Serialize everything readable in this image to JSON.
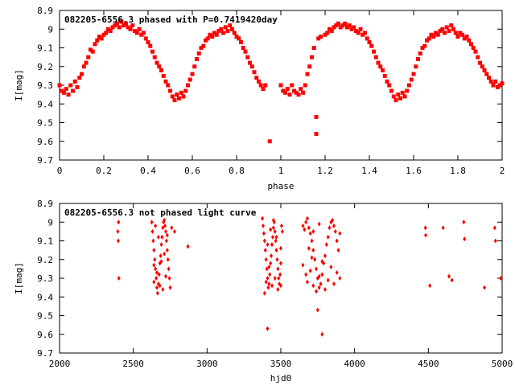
{
  "chart_data": [
    {
      "type": "scatter",
      "title": "082205-6556.3 phased with P=0.7419420day",
      "xlabel": "phase",
      "ylabel": "I[mag]",
      "xlim": [
        0,
        2
      ],
      "ylim": [
        8.9,
        9.7
      ],
      "y_inverted": true,
      "grid": false,
      "marker_color": "#ff0000",
      "x_ticks": [
        "0",
        "0.2",
        "0.4",
        "0.6",
        "0.8",
        "1",
        "1.2",
        "1.4",
        "1.6",
        "1.8",
        "2"
      ],
      "y_ticks": [
        "8.9",
        "9",
        "9.1",
        "9.2",
        "9.3",
        "9.4",
        "9.5",
        "9.6",
        "9.7"
      ],
      "points": [
        [
          0.0,
          9.3
        ],
        [
          0.01,
          9.33
        ],
        [
          0.02,
          9.34
        ],
        [
          0.03,
          9.32
        ],
        [
          0.04,
          9.35
        ],
        [
          0.05,
          9.3
        ],
        [
          0.06,
          9.33
        ],
        [
          0.07,
          9.28
        ],
        [
          0.08,
          9.31
        ],
        [
          0.09,
          9.26
        ],
        [
          0.1,
          9.24
        ],
        [
          0.11,
          9.2
        ],
        [
          0.12,
          9.18
        ],
        [
          0.13,
          9.15
        ],
        [
          0.14,
          9.11
        ],
        [
          0.15,
          9.12
        ],
        [
          0.16,
          9.08
        ],
        [
          0.17,
          9.06
        ],
        [
          0.18,
          9.04
        ],
        [
          0.19,
          9.05
        ],
        [
          0.2,
          9.03
        ],
        [
          0.21,
          9.02
        ],
        [
          0.22,
          9.0
        ],
        [
          0.23,
          9.01
        ],
        [
          0.24,
          8.99
        ],
        [
          0.25,
          8.98
        ],
        [
          0.26,
          8.97
        ],
        [
          0.27,
          8.99
        ],
        [
          0.28,
          8.96
        ],
        [
          0.29,
          8.98
        ],
        [
          0.3,
          8.97
        ],
        [
          0.31,
          8.99
        ],
        [
          0.32,
          9.0
        ],
        [
          0.33,
          8.98
        ],
        [
          0.34,
          9.01
        ],
        [
          0.35,
          9.02
        ],
        [
          0.36,
          9.0
        ],
        [
          0.37,
          9.03
        ],
        [
          0.38,
          9.02
        ],
        [
          0.39,
          9.05
        ],
        [
          0.4,
          9.07
        ],
        [
          0.41,
          9.09
        ],
        [
          0.42,
          9.12
        ],
        [
          0.43,
          9.15
        ],
        [
          0.44,
          9.18
        ],
        [
          0.45,
          9.2
        ],
        [
          0.46,
          9.22
        ],
        [
          0.47,
          9.25
        ],
        [
          0.48,
          9.28
        ],
        [
          0.49,
          9.3
        ],
        [
          0.5,
          9.33
        ],
        [
          0.51,
          9.36
        ],
        [
          0.52,
          9.38
        ],
        [
          0.53,
          9.35
        ],
        [
          0.54,
          9.37
        ],
        [
          0.55,
          9.34
        ],
        [
          0.56,
          9.36
        ],
        [
          0.57,
          9.33
        ],
        [
          0.58,
          9.3
        ],
        [
          0.59,
          9.27
        ],
        [
          0.6,
          9.24
        ],
        [
          0.61,
          9.2
        ],
        [
          0.62,
          9.16
        ],
        [
          0.63,
          9.13
        ],
        [
          0.64,
          9.1
        ],
        [
          0.65,
          9.09
        ],
        [
          0.66,
          9.06
        ],
        [
          0.67,
          9.05
        ],
        [
          0.68,
          9.03
        ],
        [
          0.69,
          9.04
        ],
        [
          0.7,
          9.02
        ],
        [
          0.71,
          9.03
        ],
        [
          0.72,
          9.01
        ],
        [
          0.73,
          9.0
        ],
        [
          0.74,
          9.02
        ],
        [
          0.75,
          8.99
        ],
        [
          0.76,
          9.01
        ],
        [
          0.77,
          8.98
        ],
        [
          0.78,
          9.0
        ],
        [
          0.79,
          9.02
        ],
        [
          0.8,
          9.04
        ],
        [
          0.81,
          9.05
        ],
        [
          0.82,
          9.07
        ],
        [
          0.83,
          9.1
        ],
        [
          0.84,
          9.12
        ],
        [
          0.85,
          9.15
        ],
        [
          0.86,
          9.18
        ],
        [
          0.87,
          9.2
        ],
        [
          0.88,
          9.23
        ],
        [
          0.89,
          9.26
        ],
        [
          0.9,
          9.28
        ],
        [
          0.91,
          9.3
        ],
        [
          0.92,
          9.32
        ],
        [
          0.93,
          9.3
        ],
        [
          0.95,
          9.6
        ],
        [
          1.0,
          9.3
        ],
        [
          1.01,
          9.33
        ],
        [
          1.02,
          9.34
        ],
        [
          1.03,
          9.32
        ],
        [
          1.04,
          9.35
        ],
        [
          1.05,
          9.3
        ],
        [
          1.06,
          9.33
        ],
        [
          1.07,
          9.34
        ],
        [
          1.08,
          9.35
        ],
        [
          1.09,
          9.32
        ],
        [
          1.1,
          9.34
        ],
        [
          1.11,
          9.3
        ],
        [
          1.12,
          9.24
        ],
        [
          1.13,
          9.2
        ],
        [
          1.14,
          9.15
        ],
        [
          1.15,
          9.1
        ],
        [
          1.16,
          9.47
        ],
        [
          1.16,
          9.56
        ],
        [
          1.17,
          9.05
        ],
        [
          1.18,
          9.04
        ],
        [
          1.2,
          9.03
        ],
        [
          1.21,
          9.02
        ],
        [
          1.22,
          9.0
        ],
        [
          1.23,
          9.01
        ],
        [
          1.24,
          8.99
        ],
        [
          1.25,
          8.98
        ],
        [
          1.26,
          8.97
        ],
        [
          1.27,
          8.99
        ],
        [
          1.28,
          8.98
        ],
        [
          1.29,
          8.97
        ],
        [
          1.3,
          8.99
        ],
        [
          1.31,
          8.98
        ],
        [
          1.32,
          9.0
        ],
        [
          1.33,
          8.99
        ],
        [
          1.34,
          9.01
        ],
        [
          1.35,
          9.02
        ],
        [
          1.36,
          9.0
        ],
        [
          1.37,
          9.03
        ],
        [
          1.38,
          9.02
        ],
        [
          1.39,
          9.05
        ],
        [
          1.4,
          9.07
        ],
        [
          1.41,
          9.09
        ],
        [
          1.42,
          9.12
        ],
        [
          1.43,
          9.15
        ],
        [
          1.44,
          9.18
        ],
        [
          1.45,
          9.2
        ],
        [
          1.46,
          9.22
        ],
        [
          1.47,
          9.25
        ],
        [
          1.48,
          9.28
        ],
        [
          1.49,
          9.3
        ],
        [
          1.5,
          9.33
        ],
        [
          1.51,
          9.36
        ],
        [
          1.52,
          9.38
        ],
        [
          1.53,
          9.35
        ],
        [
          1.54,
          9.37
        ],
        [
          1.55,
          9.34
        ],
        [
          1.56,
          9.36
        ],
        [
          1.57,
          9.33
        ],
        [
          1.58,
          9.3
        ],
        [
          1.59,
          9.27
        ],
        [
          1.6,
          9.24
        ],
        [
          1.61,
          9.2
        ],
        [
          1.62,
          9.16
        ],
        [
          1.63,
          9.13
        ],
        [
          1.64,
          9.1
        ],
        [
          1.65,
          9.09
        ],
        [
          1.66,
          9.06
        ],
        [
          1.67,
          9.05
        ],
        [
          1.68,
          9.03
        ],
        [
          1.69,
          9.04
        ],
        [
          1.7,
          9.02
        ],
        [
          1.71,
          9.03
        ],
        [
          1.72,
          9.01
        ],
        [
          1.73,
          9.0
        ],
        [
          1.74,
          9.02
        ],
        [
          1.75,
          8.99
        ],
        [
          1.76,
          9.01
        ],
        [
          1.77,
          8.98
        ],
        [
          1.78,
          9.0
        ],
        [
          1.79,
          9.02
        ],
        [
          1.8,
          9.04
        ],
        [
          1.81,
          9.02
        ],
        [
          1.82,
          9.03
        ],
        [
          1.83,
          9.05
        ],
        [
          1.84,
          9.04
        ],
        [
          1.85,
          9.06
        ],
        [
          1.86,
          9.08
        ],
        [
          1.87,
          9.1
        ],
        [
          1.88,
          9.12
        ],
        [
          1.89,
          9.15
        ],
        [
          1.9,
          9.18
        ],
        [
          1.91,
          9.2
        ],
        [
          1.92,
          9.22
        ],
        [
          1.93,
          9.24
        ],
        [
          1.94,
          9.26
        ],
        [
          1.95,
          9.28
        ],
        [
          1.96,
          9.3
        ],
        [
          1.97,
          9.28
        ],
        [
          1.98,
          9.31
        ],
        [
          1.99,
          9.3
        ],
        [
          2.0,
          9.29
        ]
      ]
    },
    {
      "type": "scatter",
      "title": "082205-6556.3 not phased light curve",
      "xlabel": "hjd0",
      "ylabel": "I[mag]",
      "xlim": [
        2000,
        5000
      ],
      "ylim": [
        8.9,
        9.7
      ],
      "y_inverted": true,
      "grid": false,
      "marker_color": "#ff0000",
      "x_ticks": [
        "2000",
        "2500",
        "3000",
        "3500",
        "4000",
        "4500",
        "5000"
      ],
      "y_ticks": [
        "8.9",
        "9",
        "9.1",
        "9.2",
        "9.3",
        "9.4",
        "9.5",
        "9.6",
        "9.7"
      ],
      "points": [
        [
          2400,
          9.0
        ],
        [
          2395,
          9.05
        ],
        [
          2398,
          9.1
        ],
        [
          2402,
          9.3
        ],
        [
          2625,
          9.0
        ],
        [
          2630,
          9.05
        ],
        [
          2635,
          9.1
        ],
        [
          2640,
          9.15
        ],
        [
          2645,
          9.2
        ],
        [
          2650,
          9.25
        ],
        [
          2655,
          9.3
        ],
        [
          2660,
          9.35
        ],
        [
          2665,
          9.38
        ],
        [
          2670,
          9.33
        ],
        [
          2675,
          9.28
        ],
        [
          2680,
          9.22
        ],
        [
          2685,
          9.18
        ],
        [
          2690,
          9.12
        ],
        [
          2695,
          9.08
        ],
        [
          2700,
          9.03
        ],
        [
          2705,
          9.0
        ],
        [
          2710,
          8.99
        ],
        [
          2715,
          9.02
        ],
        [
          2720,
          9.05
        ],
        [
          2725,
          9.1
        ],
        [
          2730,
          9.15
        ],
        [
          2735,
          9.2
        ],
        [
          2740,
          9.25
        ],
        [
          2745,
          9.3
        ],
        [
          2750,
          9.35
        ],
        [
          2640,
          9.32
        ],
        [
          2660,
          9.27
        ],
        [
          2680,
          9.34
        ],
        [
          2700,
          9.36
        ],
        [
          2720,
          9.29
        ],
        [
          2690,
          9.21
        ],
        [
          2710,
          9.17
        ],
        [
          2730,
          9.07
        ],
        [
          2650,
          9.02
        ],
        [
          2670,
          9.08
        ],
        [
          2640,
          9.23
        ],
        [
          2760,
          9.03
        ],
        [
          2780,
          9.05
        ],
        [
          2870,
          9.13
        ],
        [
          3375,
          8.98
        ],
        [
          3380,
          9.02
        ],
        [
          3385,
          9.06
        ],
        [
          3390,
          9.1
        ],
        [
          3395,
          9.15
        ],
        [
          3400,
          9.2
        ],
        [
          3405,
          9.25
        ],
        [
          3410,
          9.3
        ],
        [
          3415,
          9.35
        ],
        [
          3420,
          9.33
        ],
        [
          3425,
          9.28
        ],
        [
          3430,
          9.22
        ],
        [
          3435,
          9.18
        ],
        [
          3440,
          9.12
        ],
        [
          3445,
          9.08
        ],
        [
          3450,
          9.03
        ],
        [
          3455,
          9.0
        ],
        [
          3460,
          9.05
        ],
        [
          3465,
          9.1
        ],
        [
          3470,
          9.15
        ],
        [
          3475,
          9.2
        ],
        [
          3480,
          9.25
        ],
        [
          3485,
          9.3
        ],
        [
          3490,
          9.33
        ],
        [
          3495,
          9.28
        ],
        [
          3500,
          9.22
        ],
        [
          3505,
          9.02
        ],
        [
          3510,
          9.05
        ],
        [
          3400,
          9.32
        ],
        [
          3420,
          9.24
        ],
        [
          3440,
          9.34
        ],
        [
          3460,
          9.3
        ],
        [
          3480,
          9.36
        ],
        [
          3500,
          9.14
        ],
        [
          3390,
          9.38
        ],
        [
          3410,
          9.12
        ],
        [
          3430,
          9.04
        ],
        [
          3450,
          8.99
        ],
        [
          3470,
          9.08
        ],
        [
          3500,
          9.34
        ],
        [
          3410,
          9.57
        ],
        [
          3650,
          9.02
        ],
        [
          3660,
          9.04
        ],
        [
          3670,
          9.0
        ],
        [
          3680,
          8.98
        ],
        [
          3690,
          9.03
        ],
        [
          3700,
          9.06
        ],
        [
          3710,
          9.1
        ],
        [
          3720,
          9.15
        ],
        [
          3730,
          9.2
        ],
        [
          3740,
          9.25
        ],
        [
          3750,
          9.3
        ],
        [
          3760,
          9.35
        ],
        [
          3770,
          9.33
        ],
        [
          3780,
          9.28
        ],
        [
          3790,
          9.22
        ],
        [
          3800,
          9.18
        ],
        [
          3810,
          9.12
        ],
        [
          3820,
          9.08
        ],
        [
          3830,
          9.03
        ],
        [
          3840,
          9.0
        ],
        [
          3850,
          8.99
        ],
        [
          3860,
          9.02
        ],
        [
          3870,
          9.05
        ],
        [
          3880,
          9.1
        ],
        [
          3890,
          9.15
        ],
        [
          3900,
          9.3
        ],
        [
          3680,
          9.32
        ],
        [
          3700,
          9.26
        ],
        [
          3720,
          9.34
        ],
        [
          3740,
          9.37
        ],
        [
          3760,
          9.29
        ],
        [
          3780,
          9.21
        ],
        [
          3800,
          9.36
        ],
        [
          3820,
          9.31
        ],
        [
          3840,
          9.24
        ],
        [
          3860,
          9.33
        ],
        [
          3880,
          9.27
        ],
        [
          3900,
          9.06
        ],
        [
          3720,
          9.05
        ],
        [
          3760,
          9.01
        ],
        [
          3650,
          9.23
        ],
        [
          3670,
          9.28
        ],
        [
          3690,
          9.14
        ],
        [
          3710,
          9.19
        ],
        [
          3750,
          9.47
        ],
        [
          3780,
          9.6
        ],
        [
          4480,
          9.03
        ],
        [
          4482,
          9.07
        ],
        [
          4510,
          9.34
        ],
        [
          4600,
          9.03
        ],
        [
          4640,
          9.29
        ],
        [
          4660,
          9.31
        ],
        [
          4740,
          9.0
        ],
        [
          4745,
          9.09
        ],
        [
          4880,
          9.35
        ],
        [
          4950,
          9.03
        ],
        [
          4955,
          9.1
        ],
        [
          4990,
          9.3
        ]
      ]
    }
  ]
}
